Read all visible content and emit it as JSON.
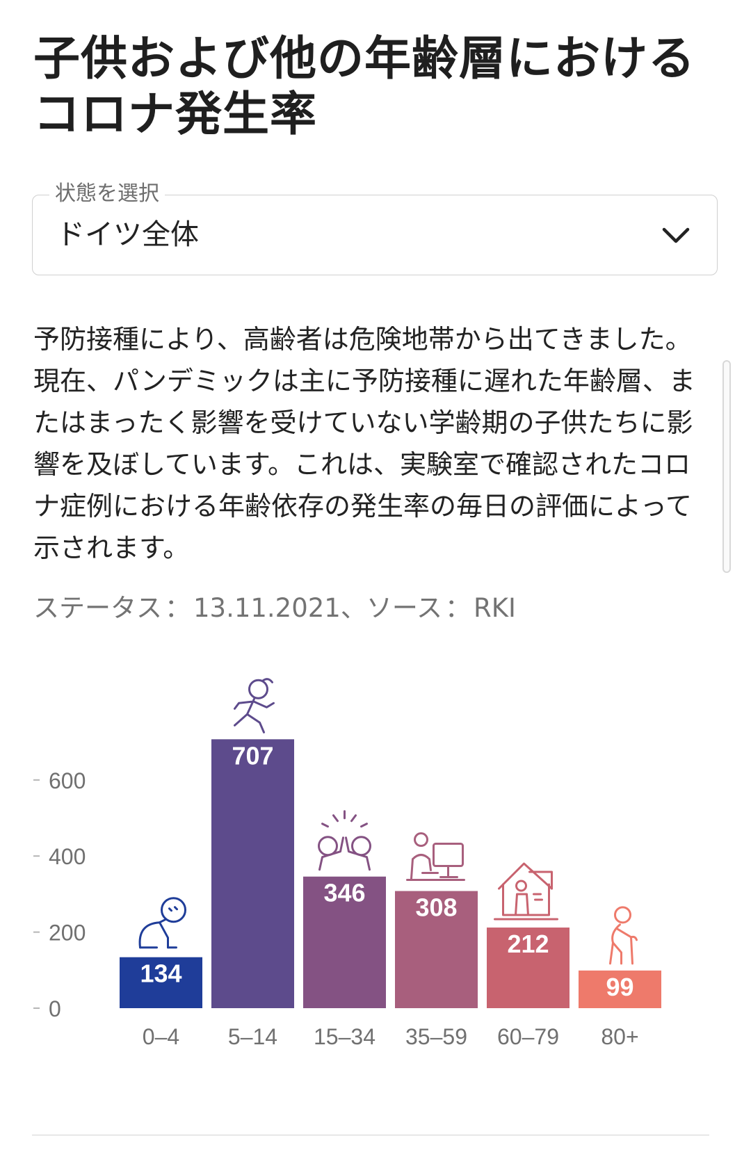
{
  "title": "子供および他の年齢層におけるコロナ発生率",
  "selector": {
    "label": "状態を選択",
    "value": "ドイツ全体"
  },
  "description": "予防接種により、高齢者は危険地帯から出てきました。現在、パンデミックは主に予防接種に遅れた年齢層、またはまったく影響を受けていない学齢期の子供たちに影響を及ぼしています。これは、実験室で確認されたコロナ症例における年齢依存の発生率の毎日の評価によって示されます。",
  "status": {
    "label": "ステータス",
    "date": "13.11.2021",
    "source_label": "ソース",
    "source": "RKI"
  },
  "chart_data": {
    "type": "bar",
    "categories": [
      "0–4",
      "5–14",
      "15–34",
      "35–59",
      "60–79",
      "80+"
    ],
    "values": [
      134,
      707,
      346,
      308,
      212,
      99
    ],
    "colors": [
      "#1f3d99",
      "#5d4b8c",
      "#845283",
      "#a85f7d",
      "#c8636f",
      "#ee7a6b"
    ],
    "icons": [
      "baby-crawling-icon",
      "child-running-icon",
      "young-adults-highfive-icon",
      "adult-desk-icon",
      "senior-house-icon",
      "elderly-cane-icon"
    ],
    "yticks": [
      0,
      200,
      400,
      600
    ],
    "ylim": [
      0,
      740
    ],
    "grid": false,
    "legend": "none",
    "title": "",
    "xlabel": "",
    "ylabel": ""
  }
}
